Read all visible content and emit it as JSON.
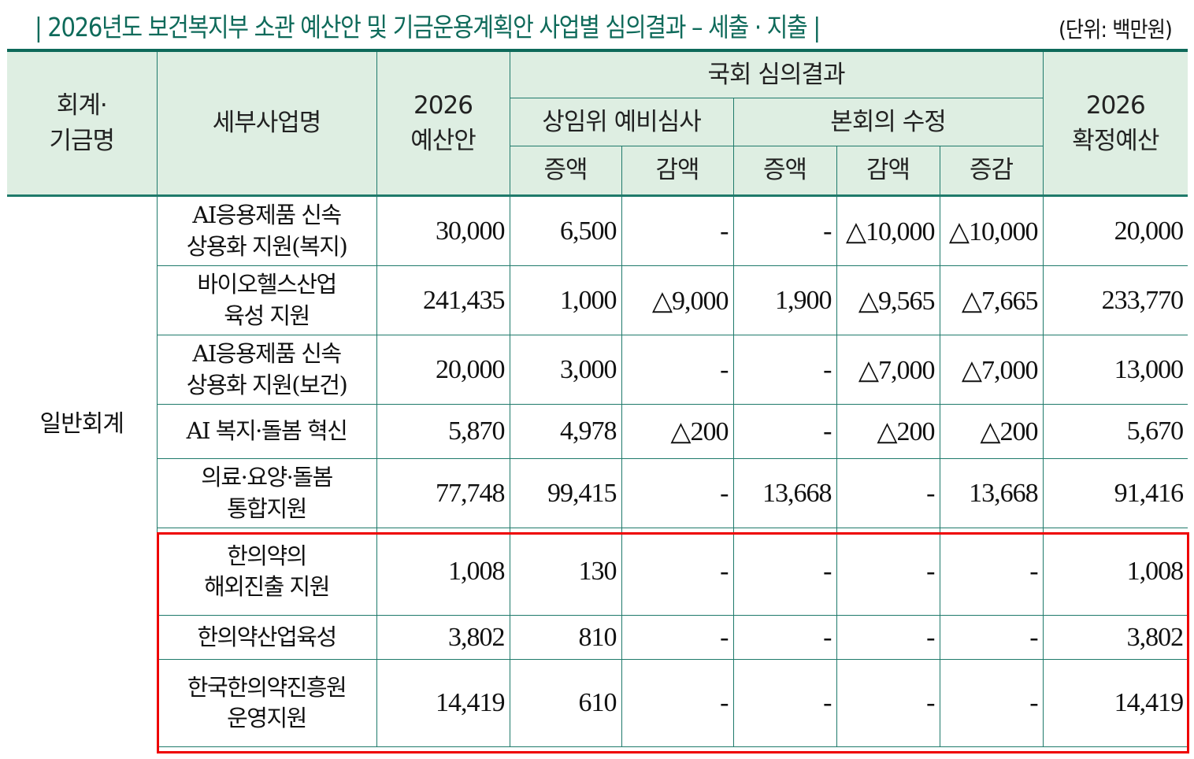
{
  "title": "| 2026년도 보건복지부 소관 예산안 및 기금운용계획안 사업별 심의결과 – 세출 · 지출 |",
  "unit": "(단위: 백만원)",
  "colors": {
    "accent": "#0e6a5a",
    "header_bg": "#deeee2",
    "grid": "#1f7a6b",
    "highlight": "#ee0000"
  },
  "header": {
    "account": "회계·\n기금명",
    "program": "세부사업명",
    "budget_2026": "2026\n예산안",
    "review_group": "국회 심의결과",
    "committee": "상임위 예비심사",
    "plenary": "본회의 수정",
    "increase": "증액",
    "decrease": "감액",
    "plenary_increase": "증액",
    "plenary_decrease": "감액",
    "net_change": "증감",
    "final_2026": "2026\n확정예산"
  },
  "account_group": "일반회계",
  "rows": [
    {
      "name": "AI응용제품 신속\n상용화 지원(복지)",
      "budget": "30,000",
      "cmt_inc": "6,500",
      "cmt_dec": "-",
      "pl_inc": "-",
      "pl_dec": "△10,000",
      "net": "△10,000",
      "final": "20,000"
    },
    {
      "name": "바이오헬스산업\n육성 지원",
      "budget": "241,435",
      "cmt_inc": "1,000",
      "cmt_dec": "△9,000",
      "pl_inc": "1,900",
      "pl_dec": "△9,565",
      "net": "△7,665",
      "final": "233,770"
    },
    {
      "name": "AI응용제품 신속\n상용화 지원(보건)",
      "budget": "20,000",
      "cmt_inc": "3,000",
      "cmt_dec": "-",
      "pl_inc": "-",
      "pl_dec": "△7,000",
      "net": "△7,000",
      "final": "13,000"
    },
    {
      "name": "AI 복지·돌봄 혁신",
      "budget": "5,870",
      "cmt_inc": "4,978",
      "cmt_dec": "△200",
      "pl_inc": "-",
      "pl_dec": "△200",
      "net": "△200",
      "final": "5,670"
    },
    {
      "name": "의료·요양·돌봄\n통합지원",
      "budget": "77,748",
      "cmt_inc": "99,415",
      "cmt_dec": "-",
      "pl_inc": "13,668",
      "pl_dec": "-",
      "net": "13,668",
      "final": "91,416"
    },
    {
      "name": "한의약의\n해외진출 지원",
      "budget": "1,008",
      "cmt_inc": "130",
      "cmt_dec": "-",
      "pl_inc": "-",
      "pl_dec": "-",
      "net": "-",
      "final": "1,008"
    },
    {
      "name": "한의약산업육성",
      "budget": "3,802",
      "cmt_inc": "810",
      "cmt_dec": "-",
      "pl_inc": "-",
      "pl_dec": "-",
      "net": "-",
      "final": "3,802"
    },
    {
      "name": "한국한의약진흥원\n운영지원",
      "budget": "14,419",
      "cmt_inc": "610",
      "cmt_dec": "-",
      "pl_inc": "-",
      "pl_dec": "-",
      "net": "-",
      "final": "14,419"
    }
  ],
  "highlighted_rows": [
    5,
    6,
    7
  ]
}
